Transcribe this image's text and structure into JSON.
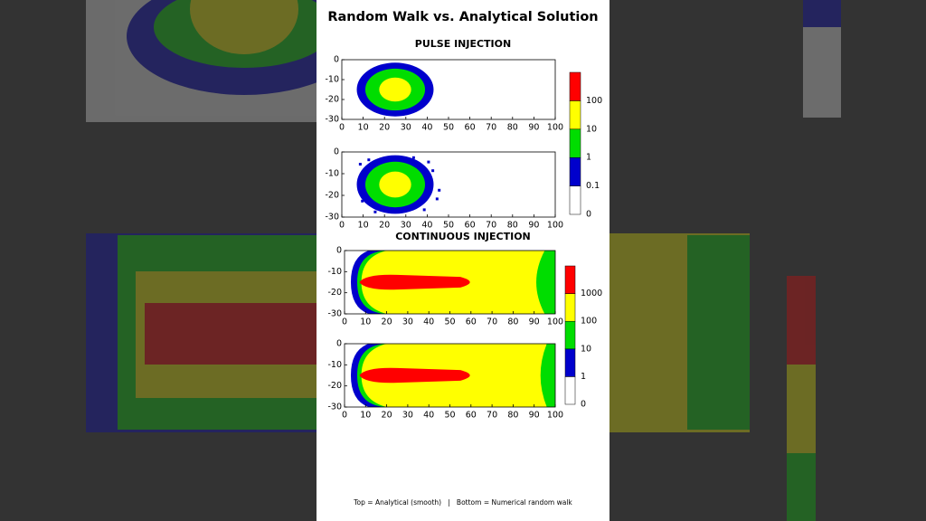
{
  "title": "Random Walk vs. Analytical Solution",
  "footer": "Top = Analytical (smooth)   |   Bottom = Numerical random walk",
  "chart_data": [
    {
      "type": "contour",
      "title": "PULSE INJECTION",
      "xlim": [
        0,
        100
      ],
      "ylim": [
        -30,
        0
      ],
      "xticks": [
        0,
        10,
        20,
        30,
        40,
        50,
        60,
        70,
        80,
        90,
        100
      ],
      "yticks": [
        0,
        -10,
        -20,
        -30
      ],
      "colorbar": {
        "levels": [
          0,
          0.1,
          1,
          10,
          100
        ],
        "colors": [
          "#ffffff",
          "#0000cc",
          "#00dd00",
          "#ffff00",
          "#ff0000"
        ]
      }
    },
    {
      "type": "contour",
      "xlim": [
        0,
        100
      ],
      "ylim": [
        -30,
        0
      ],
      "xticks": [
        0,
        10,
        20,
        30,
        40,
        50,
        60,
        70,
        80,
        90,
        100
      ],
      "yticks": [
        0,
        -10,
        -20,
        -30
      ]
    },
    {
      "type": "contour",
      "title": "CONTINUOUS INJECTION",
      "xlim": [
        0,
        100
      ],
      "ylim": [
        -30,
        0
      ],
      "xticks": [
        0,
        10,
        20,
        30,
        40,
        50,
        60,
        70,
        80,
        90,
        100
      ],
      "yticks": [
        0,
        -10,
        -20,
        -30
      ],
      "colorbar": {
        "levels": [
          0,
          1,
          10,
          100,
          1000
        ],
        "colors": [
          "#ffffff",
          "#0000cc",
          "#00dd00",
          "#ffff00",
          "#ff0000"
        ]
      }
    },
    {
      "type": "contour",
      "xlim": [
        0,
        100
      ],
      "ylim": [
        -30,
        0
      ],
      "xticks": [
        0,
        10,
        20,
        30,
        40,
        50,
        60,
        70,
        80,
        90,
        100
      ],
      "yticks": [
        0,
        -10,
        -20,
        -30
      ]
    }
  ]
}
